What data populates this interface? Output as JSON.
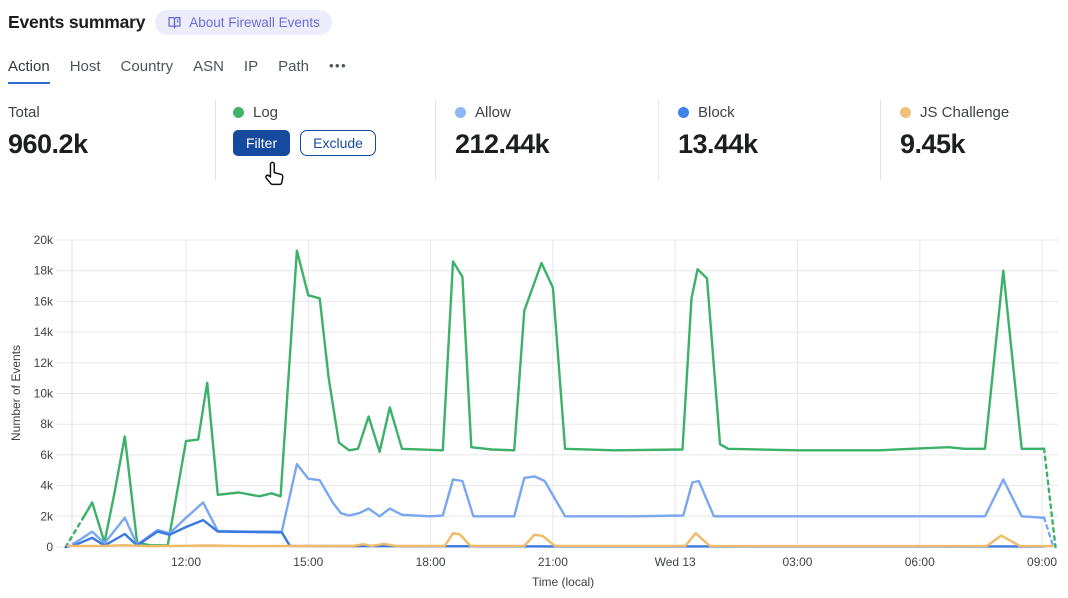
{
  "header": {
    "title": "Events summary",
    "badge": {
      "label": "About Firewall Events",
      "icon": "book-icon"
    }
  },
  "tabs": {
    "active_color": "#2e6bd8",
    "items": [
      {
        "label": "Action",
        "active": true
      },
      {
        "label": "Host",
        "active": false
      },
      {
        "label": "Country",
        "active": false
      },
      {
        "label": "ASN",
        "active": false
      },
      {
        "label": "IP",
        "active": false
      },
      {
        "label": "Path",
        "active": false
      },
      {
        "label": "•••",
        "active": false,
        "more": true
      }
    ]
  },
  "stats": {
    "cards": [
      {
        "id": "total",
        "label": "Total",
        "value": "960.2k",
        "dot_color": null
      },
      {
        "id": "log",
        "label": "Log",
        "value": null,
        "dot_color": "#41b16c",
        "buttons": [
          {
            "label": "Filter",
            "style": "primary"
          },
          {
            "label": "Exclude",
            "style": "secondary"
          }
        ]
      },
      {
        "id": "allow",
        "label": "Allow",
        "value": "212.44k",
        "dot_color": "#8db6f3"
      },
      {
        "id": "block",
        "label": "Block",
        "value": "13.44k",
        "dot_color": "#3f83e9"
      },
      {
        "id": "js-challenge",
        "label": "JS Challenge",
        "value": "9.45k",
        "dot_color": "#f2bf79"
      }
    ]
  },
  "chart_data": {
    "type": "line",
    "title": "",
    "xlabel": "Time (local)",
    "ylabel": "Number of Events",
    "values_unit": "thousands of events",
    "x_unit": "hours since 09:00 on first day",
    "xlim": [
      0,
      24.35
    ],
    "ylim": [
      0,
      20
    ],
    "grid": true,
    "legend_position": "stats-row-above",
    "yticks": [
      {
        "v": 0,
        "label": "0"
      },
      {
        "v": 2,
        "label": "2k"
      },
      {
        "v": 4,
        "label": "4k"
      },
      {
        "v": 6,
        "label": "6k"
      },
      {
        "v": 8,
        "label": "8k"
      },
      {
        "v": 10,
        "label": "10k"
      },
      {
        "v": 12,
        "label": "12k"
      },
      {
        "v": 14,
        "label": "14k"
      },
      {
        "v": 16,
        "label": "16k"
      },
      {
        "v": 18,
        "label": "18k"
      },
      {
        "v": 20,
        "label": "20k"
      }
    ],
    "xticks": [
      {
        "h": 3,
        "label": "12:00"
      },
      {
        "h": 6,
        "label": "15:00"
      },
      {
        "h": 9,
        "label": "18:00"
      },
      {
        "h": 12,
        "label": "21:00"
      },
      {
        "h": 15,
        "label": "Wed 13"
      },
      {
        "h": 18,
        "label": "03:00"
      },
      {
        "h": 21,
        "label": "06:00"
      },
      {
        "h": 24,
        "label": "09:00"
      }
    ],
    "series": [
      {
        "name": "Log",
        "color": "#3cb169",
        "dashed_lead": [
          [
            0.05,
            0
          ],
          [
            0.5,
            2.0
          ]
        ],
        "points": [
          [
            0.5,
            2.0
          ],
          [
            0.7,
            2.9
          ],
          [
            1.0,
            0.3
          ],
          [
            1.25,
            3.6
          ],
          [
            1.5,
            7.2
          ],
          [
            1.8,
            0.3
          ],
          [
            2.1,
            0.12
          ],
          [
            2.55,
            0.1
          ],
          [
            3.0,
            6.9
          ],
          [
            3.3,
            7.0
          ],
          [
            3.52,
            10.7
          ],
          [
            3.78,
            3.4
          ],
          [
            4.3,
            3.55
          ],
          [
            4.8,
            3.3
          ],
          [
            5.1,
            3.5
          ],
          [
            5.32,
            3.3
          ],
          [
            5.72,
            19.3
          ],
          [
            6.0,
            16.4
          ],
          [
            6.28,
            16.2
          ],
          [
            6.5,
            11.0
          ],
          [
            6.75,
            6.8
          ],
          [
            7.0,
            6.3
          ],
          [
            7.22,
            6.4
          ],
          [
            7.48,
            8.5
          ],
          [
            7.75,
            6.2
          ],
          [
            8.0,
            9.1
          ],
          [
            8.3,
            6.4
          ],
          [
            9.3,
            6.3
          ],
          [
            9.55,
            18.6
          ],
          [
            9.78,
            17.6
          ],
          [
            10.0,
            6.5
          ],
          [
            10.5,
            6.35
          ],
          [
            11.05,
            6.3
          ],
          [
            11.3,
            15.4
          ],
          [
            11.72,
            18.5
          ],
          [
            12.0,
            16.9
          ],
          [
            12.3,
            6.4
          ],
          [
            13.5,
            6.3
          ],
          [
            15.18,
            6.35
          ],
          [
            15.4,
            16.2
          ],
          [
            15.55,
            18.1
          ],
          [
            15.78,
            17.5
          ],
          [
            16.1,
            6.7
          ],
          [
            16.3,
            6.4
          ],
          [
            18.0,
            6.3
          ],
          [
            20.0,
            6.3
          ],
          [
            21.7,
            6.5
          ],
          [
            22.1,
            6.4
          ],
          [
            22.6,
            6.4
          ],
          [
            23.05,
            18.0
          ],
          [
            23.5,
            6.4
          ],
          [
            24.05,
            6.4
          ]
        ],
        "dashed_tail": [
          [
            24.05,
            6.4
          ],
          [
            24.33,
            0
          ]
        ]
      },
      {
        "name": "Allow",
        "color": "#7aa7ef",
        "dashed_lead": [
          [
            0.05,
            0
          ],
          [
            0.3,
            0.3
          ]
        ],
        "points": [
          [
            0.3,
            0.3
          ],
          [
            0.7,
            1.0
          ],
          [
            1.0,
            0.25
          ],
          [
            1.5,
            1.9
          ],
          [
            1.8,
            0.15
          ],
          [
            2.3,
            1.1
          ],
          [
            2.6,
            0.9
          ],
          [
            3.0,
            1.9
          ],
          [
            3.42,
            2.9
          ],
          [
            3.78,
            1.05
          ],
          [
            4.5,
            1.0
          ],
          [
            5.35,
            1.0
          ],
          [
            5.72,
            5.4
          ],
          [
            6.0,
            4.45
          ],
          [
            6.28,
            4.35
          ],
          [
            6.6,
            2.9
          ],
          [
            6.8,
            2.2
          ],
          [
            7.0,
            2.05
          ],
          [
            7.25,
            2.2
          ],
          [
            7.48,
            2.5
          ],
          [
            7.75,
            2.0
          ],
          [
            8.0,
            2.5
          ],
          [
            8.3,
            2.1
          ],
          [
            9.0,
            2.0
          ],
          [
            9.3,
            2.05
          ],
          [
            9.55,
            4.4
          ],
          [
            9.78,
            4.3
          ],
          [
            10.05,
            2.0
          ],
          [
            11.05,
            2.0
          ],
          [
            11.3,
            4.5
          ],
          [
            11.55,
            4.6
          ],
          [
            11.8,
            4.3
          ],
          [
            12.3,
            2.0
          ],
          [
            14.0,
            2.0
          ],
          [
            15.2,
            2.05
          ],
          [
            15.42,
            4.2
          ],
          [
            15.58,
            4.3
          ],
          [
            15.95,
            2.0
          ],
          [
            18.0,
            2.0
          ],
          [
            21.0,
            2.0
          ],
          [
            22.6,
            2.0
          ],
          [
            23.05,
            4.4
          ],
          [
            23.5,
            2.0
          ],
          [
            24.05,
            1.9
          ]
        ],
        "dashed_tail": [
          [
            24.05,
            1.9
          ],
          [
            24.28,
            0
          ]
        ]
      },
      {
        "name": "Block",
        "color": "#3a79e2",
        "dashed_lead": [
          [
            0.05,
            0
          ],
          [
            0.3,
            0.15
          ]
        ],
        "points": [
          [
            0.3,
            0.15
          ],
          [
            0.7,
            0.6
          ],
          [
            1.0,
            0.1
          ],
          [
            1.5,
            0.85
          ],
          [
            1.8,
            0.1
          ],
          [
            2.3,
            1.0
          ],
          [
            2.6,
            0.8
          ],
          [
            3.0,
            1.3
          ],
          [
            3.42,
            1.75
          ],
          [
            3.78,
            1.0
          ],
          [
            5.35,
            0.95
          ],
          [
            5.55,
            0.07
          ],
          [
            8.0,
            0.05
          ],
          [
            12.0,
            0.04
          ],
          [
            16.0,
            0.04
          ],
          [
            20.0,
            0.04
          ],
          [
            24.05,
            0.04
          ]
        ],
        "dashed_tail": []
      },
      {
        "name": "JS Challenge",
        "color": "#f0ba68",
        "dashed_lead": [],
        "points": [
          [
            0.1,
            0.07
          ],
          [
            1.0,
            0.08
          ],
          [
            1.5,
            0.12
          ],
          [
            2.1,
            0.05
          ],
          [
            3.0,
            0.08
          ],
          [
            3.5,
            0.1
          ],
          [
            4.5,
            0.06
          ],
          [
            5.5,
            0.07
          ],
          [
            7.1,
            0.07
          ],
          [
            7.35,
            0.18
          ],
          [
            7.55,
            0.07
          ],
          [
            7.85,
            0.2
          ],
          [
            8.15,
            0.07
          ],
          [
            9.35,
            0.07
          ],
          [
            9.55,
            0.9
          ],
          [
            9.72,
            0.82
          ],
          [
            9.98,
            0.07
          ],
          [
            11.3,
            0.07
          ],
          [
            11.55,
            0.8
          ],
          [
            11.75,
            0.72
          ],
          [
            12.05,
            0.07
          ],
          [
            15.25,
            0.07
          ],
          [
            15.5,
            0.9
          ],
          [
            15.85,
            0.07
          ],
          [
            18.0,
            0.06
          ],
          [
            21.0,
            0.06
          ],
          [
            22.65,
            0.07
          ],
          [
            23.0,
            0.75
          ],
          [
            23.45,
            0.07
          ],
          [
            24.25,
            0.06
          ]
        ],
        "dashed_tail": []
      }
    ]
  }
}
